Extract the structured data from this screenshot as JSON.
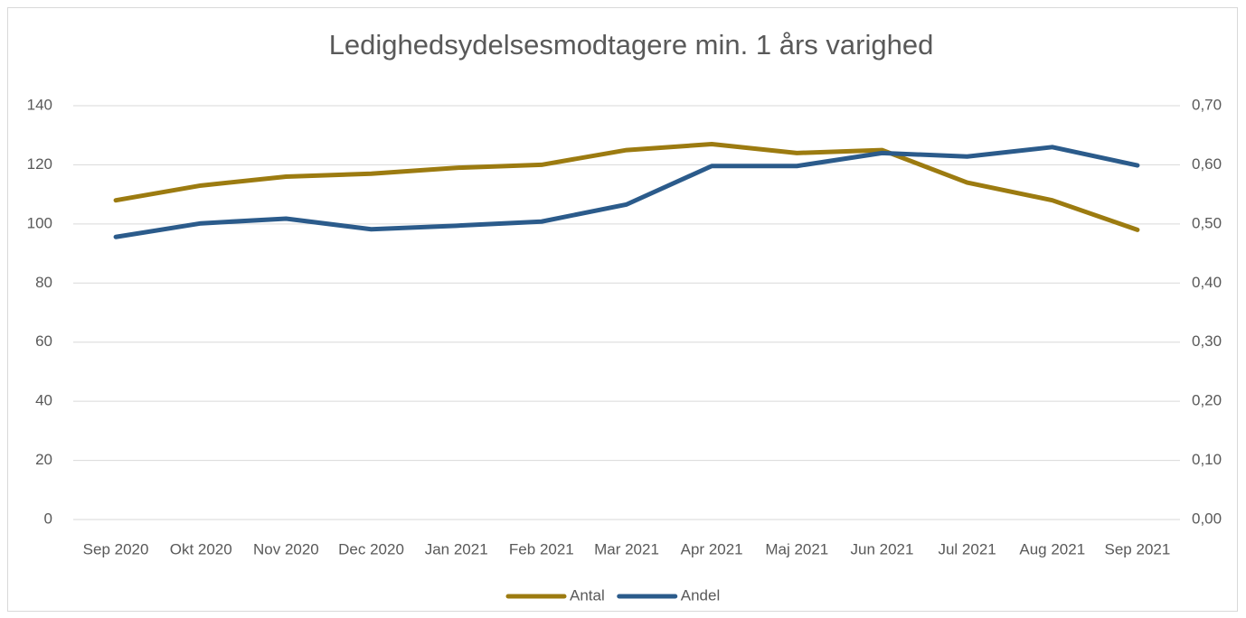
{
  "chart_data": {
    "type": "line",
    "title": "Ledighedsydelsesmodtagere min. 1 års varighed",
    "categories": [
      "Sep 2020",
      "Okt 2020",
      "Nov 2020",
      "Dec 2020",
      "Jan 2021",
      "Feb 2021",
      "Mar 2021",
      "Apr 2021",
      "Maj 2021",
      "Jun 2021",
      "Jul 2021",
      "Aug 2021",
      "Sep 2021"
    ],
    "series": [
      {
        "name": "Antal",
        "color": "#9c7b10",
        "values": [
          108,
          113,
          116,
          117,
          119,
          120,
          125,
          127,
          124,
          125,
          114,
          108,
          98
        ]
      },
      {
        "name": "Andel",
        "color": "#2b5b8b",
        "axis": "y2",
        "values": [
          0.478,
          0.501,
          0.509,
          0.491,
          0.497,
          0.504,
          0.533,
          0.598,
          0.598,
          0.62,
          0.614,
          0.63,
          0.599
        ]
      }
    ],
    "ylim": [
      0,
      140
    ],
    "yticks": [
      0,
      20,
      40,
      60,
      80,
      100,
      120,
      140
    ],
    "y2lim": [
      0,
      0.7
    ],
    "y2ticks": [
      {
        "value": 0,
        "label": "0,00"
      },
      {
        "value": 0.1,
        "label": "0,10"
      },
      {
        "value": 0.2,
        "label": "0,20"
      },
      {
        "value": 0.3,
        "label": "0,30"
      },
      {
        "value": 0.4,
        "label": "0,40"
      },
      {
        "value": 0.5,
        "label": "0,50"
      },
      {
        "value": 0.6,
        "label": "0,60"
      },
      {
        "value": 0.7,
        "label": "0,70"
      }
    ],
    "grid": true,
    "legend": "bottom"
  }
}
